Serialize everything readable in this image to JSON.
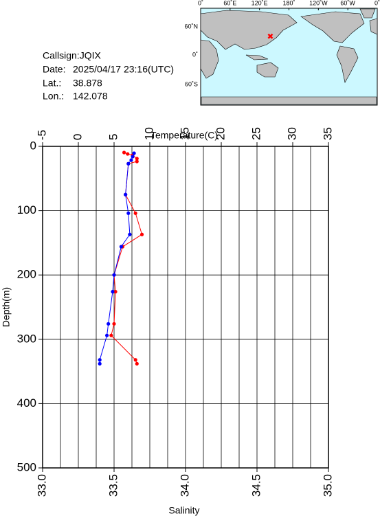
{
  "info": {
    "callsign": "Callsign:JQIX",
    "date_label": "Date:",
    "date": "2025/04/17 23:16(UTC)",
    "lat_label": "Lat.:",
    "lat": 38.878,
    "lon_label": "Lon.:",
    "lon": 142.078
  },
  "map": {
    "lon_labels": [
      "0˚",
      "60˚E",
      "120˚E",
      "180˚",
      "120˚W",
      "60˚W",
      "0˚"
    ],
    "lat_labels": [
      "60˚N",
      "0˚",
      "60˚S"
    ],
    "marker_color": "#ff0000"
  },
  "chart_data": {
    "type": "profile",
    "ylabel": "Depth(m)",
    "ylim": [
      0,
      500
    ],
    "yticks": [
      0,
      100,
      200,
      300,
      400,
      500
    ],
    "grid": true,
    "temperature": {
      "label": "Temperature(C)",
      "xlim": [
        -5,
        35
      ],
      "xticks": [
        -5,
        0,
        5,
        10,
        15,
        20,
        25,
        30,
        35
      ],
      "xgrid": [
        -2.5,
        0,
        2.5,
        5,
        7.5,
        10,
        12.5,
        15,
        17.5,
        20,
        22.5,
        25,
        27.5,
        30,
        32.5
      ],
      "color": "#ff0000",
      "depth": [
        9.6,
        11.8,
        13.9,
        19,
        23.5,
        27,
        75,
        104,
        137,
        156,
        200,
        226,
        276,
        294,
        332,
        338
      ],
      "values": [
        6.4,
        6.9,
        7.6,
        8.2,
        8.2,
        7.0,
        6.6,
        8.0,
        8.9,
        6.2,
        5.0,
        5.2,
        5.0,
        4.6,
        8.0,
        8.2
      ]
    },
    "salinity": {
      "label": "Salinity",
      "xlim": [
        33,
        35
      ],
      "xticks": [
        {
          "value": 33,
          "label": "33.0"
        },
        33.5,
        {
          "value": 34,
          "label": "34.0"
        },
        34.5,
        {
          "value": 35,
          "label": "35.0"
        }
      ],
      "color": "#0000ff",
      "depth": [
        10.7,
        16,
        21.4,
        27,
        75,
        104,
        137,
        156,
        200,
        226,
        276,
        294,
        332,
        338
      ],
      "values": [
        33.64,
        33.63,
        33.62,
        33.6,
        33.58,
        33.6,
        33.61,
        33.55,
        33.5,
        33.49,
        33.46,
        33.45,
        33.4,
        33.4
      ]
    }
  }
}
